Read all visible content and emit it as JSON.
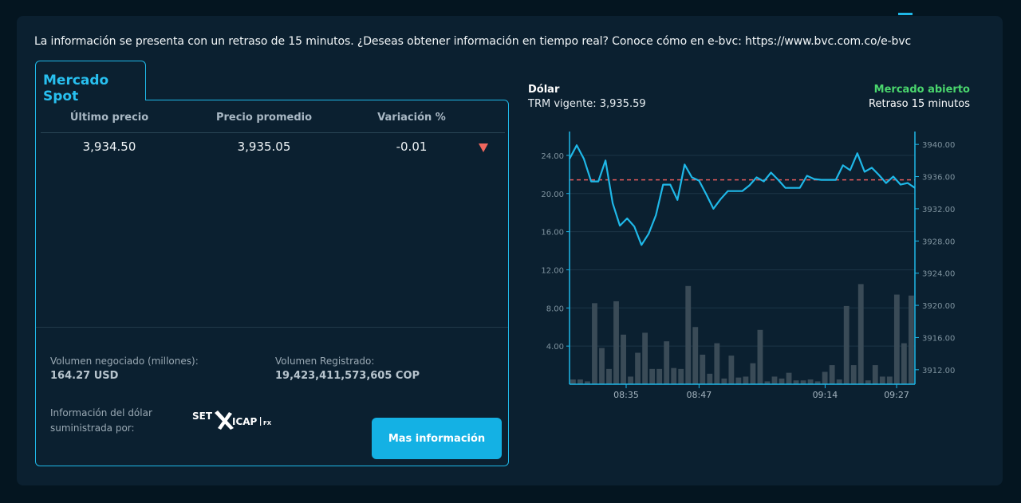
{
  "notice": "La información se presenta con un retraso de 15 minutos. ¿Deseas obtener información en tiempo real? Conoce cómo en e-bvc: https://www.bvc.com.co/e-bvc",
  "spot": {
    "tab_label": "Mercado Spot",
    "columns": [
      "Último precio",
      "Precio promedio",
      "Variación %"
    ],
    "row": {
      "last": "3,934.50",
      "average": "3,935.05",
      "variation": "-0.01",
      "trend_icon": "down-triangle-icon"
    },
    "volume_label": "Volumen negociado (millones):",
    "volume_value": "164.27 USD",
    "registered_label": "Volumen Registrado:",
    "registered_value": "19,423,411,573,605 COP",
    "provider_label_1": "Información del dólar",
    "provider_label_2": "suministrada por:",
    "provider_logo": {
      "left": "SET",
      "right": "ICAP",
      "suffix": "FX"
    },
    "more_button": "Mas información"
  },
  "chart_header": {
    "title": "Dólar",
    "trm": "TRM vigente: 3,935.59",
    "status": "Mercado abierto",
    "delay": "Retraso 15 minutos"
  },
  "colors": {
    "price_line": "#1fb8e8",
    "reference_line": "#e45b5b",
    "bars": "#3a4b57",
    "status_open": "#4ad66d",
    "accent": "#14b1e4"
  },
  "chart_data": {
    "type": "line",
    "title": "Dólar",
    "x_ticks": [
      "08:35",
      "08:47",
      "09:14",
      "09:27"
    ],
    "y_left_ticks": [
      "24.00",
      "20.00",
      "16.00",
      "12.00",
      "8.00",
      "4.00"
    ],
    "y_left_range": [
      0,
      26.5
    ],
    "y_right_ticks": [
      "3940.00",
      "3936.00",
      "3932.00",
      "3928.00",
      "3924.00",
      "3920.00",
      "3916.00",
      "3912.00"
    ],
    "y_right_range": [
      3910.2,
      3941.6
    ],
    "reference_value": 3935.59,
    "price_series": [
      3938.2,
      3939.9,
      3938.2,
      3935.4,
      3935.4,
      3938,
      3932.7,
      3929.9,
      3930.8,
      3929.8,
      3927.5,
      3928.9,
      3931.2,
      3935,
      3935,
      3933.1,
      3937.5,
      3935.9,
      3935.5,
      3933.8,
      3932,
      3933.2,
      3934.2,
      3934.2,
      3934.2,
      3934.9,
      3935.9,
      3935.4,
      3936.5,
      3935.6,
      3934.6,
      3934.6,
      3934.6,
      3936.1,
      3935.7,
      3935.6,
      3935.6,
      3935.6,
      3937.4,
      3936.8,
      3938.9,
      3936.6,
      3937.1,
      3936.2,
      3935.2,
      3936,
      3935,
      3935.2,
      3934.6
    ],
    "volume_bars": [
      0.5,
      0.5,
      0.3,
      8.5,
      3.8,
      1.6,
      8.7,
      5.2,
      0.8,
      3.3,
      5.4,
      1.6,
      1.6,
      4.5,
      1.7,
      1.6,
      10.3,
      6,
      3.1,
      1.1,
      4.3,
      0.6,
      3,
      0.7,
      0.8,
      2.2,
      5.7,
      0.3,
      0.8,
      0.6,
      1.2,
      0.4,
      0.4,
      0.5,
      0.3,
      1.3,
      2,
      0.5,
      8.2,
      2,
      10.5,
      0.4,
      2,
      0.8,
      0.8,
      9.4,
      4.3,
      9.3
    ]
  }
}
